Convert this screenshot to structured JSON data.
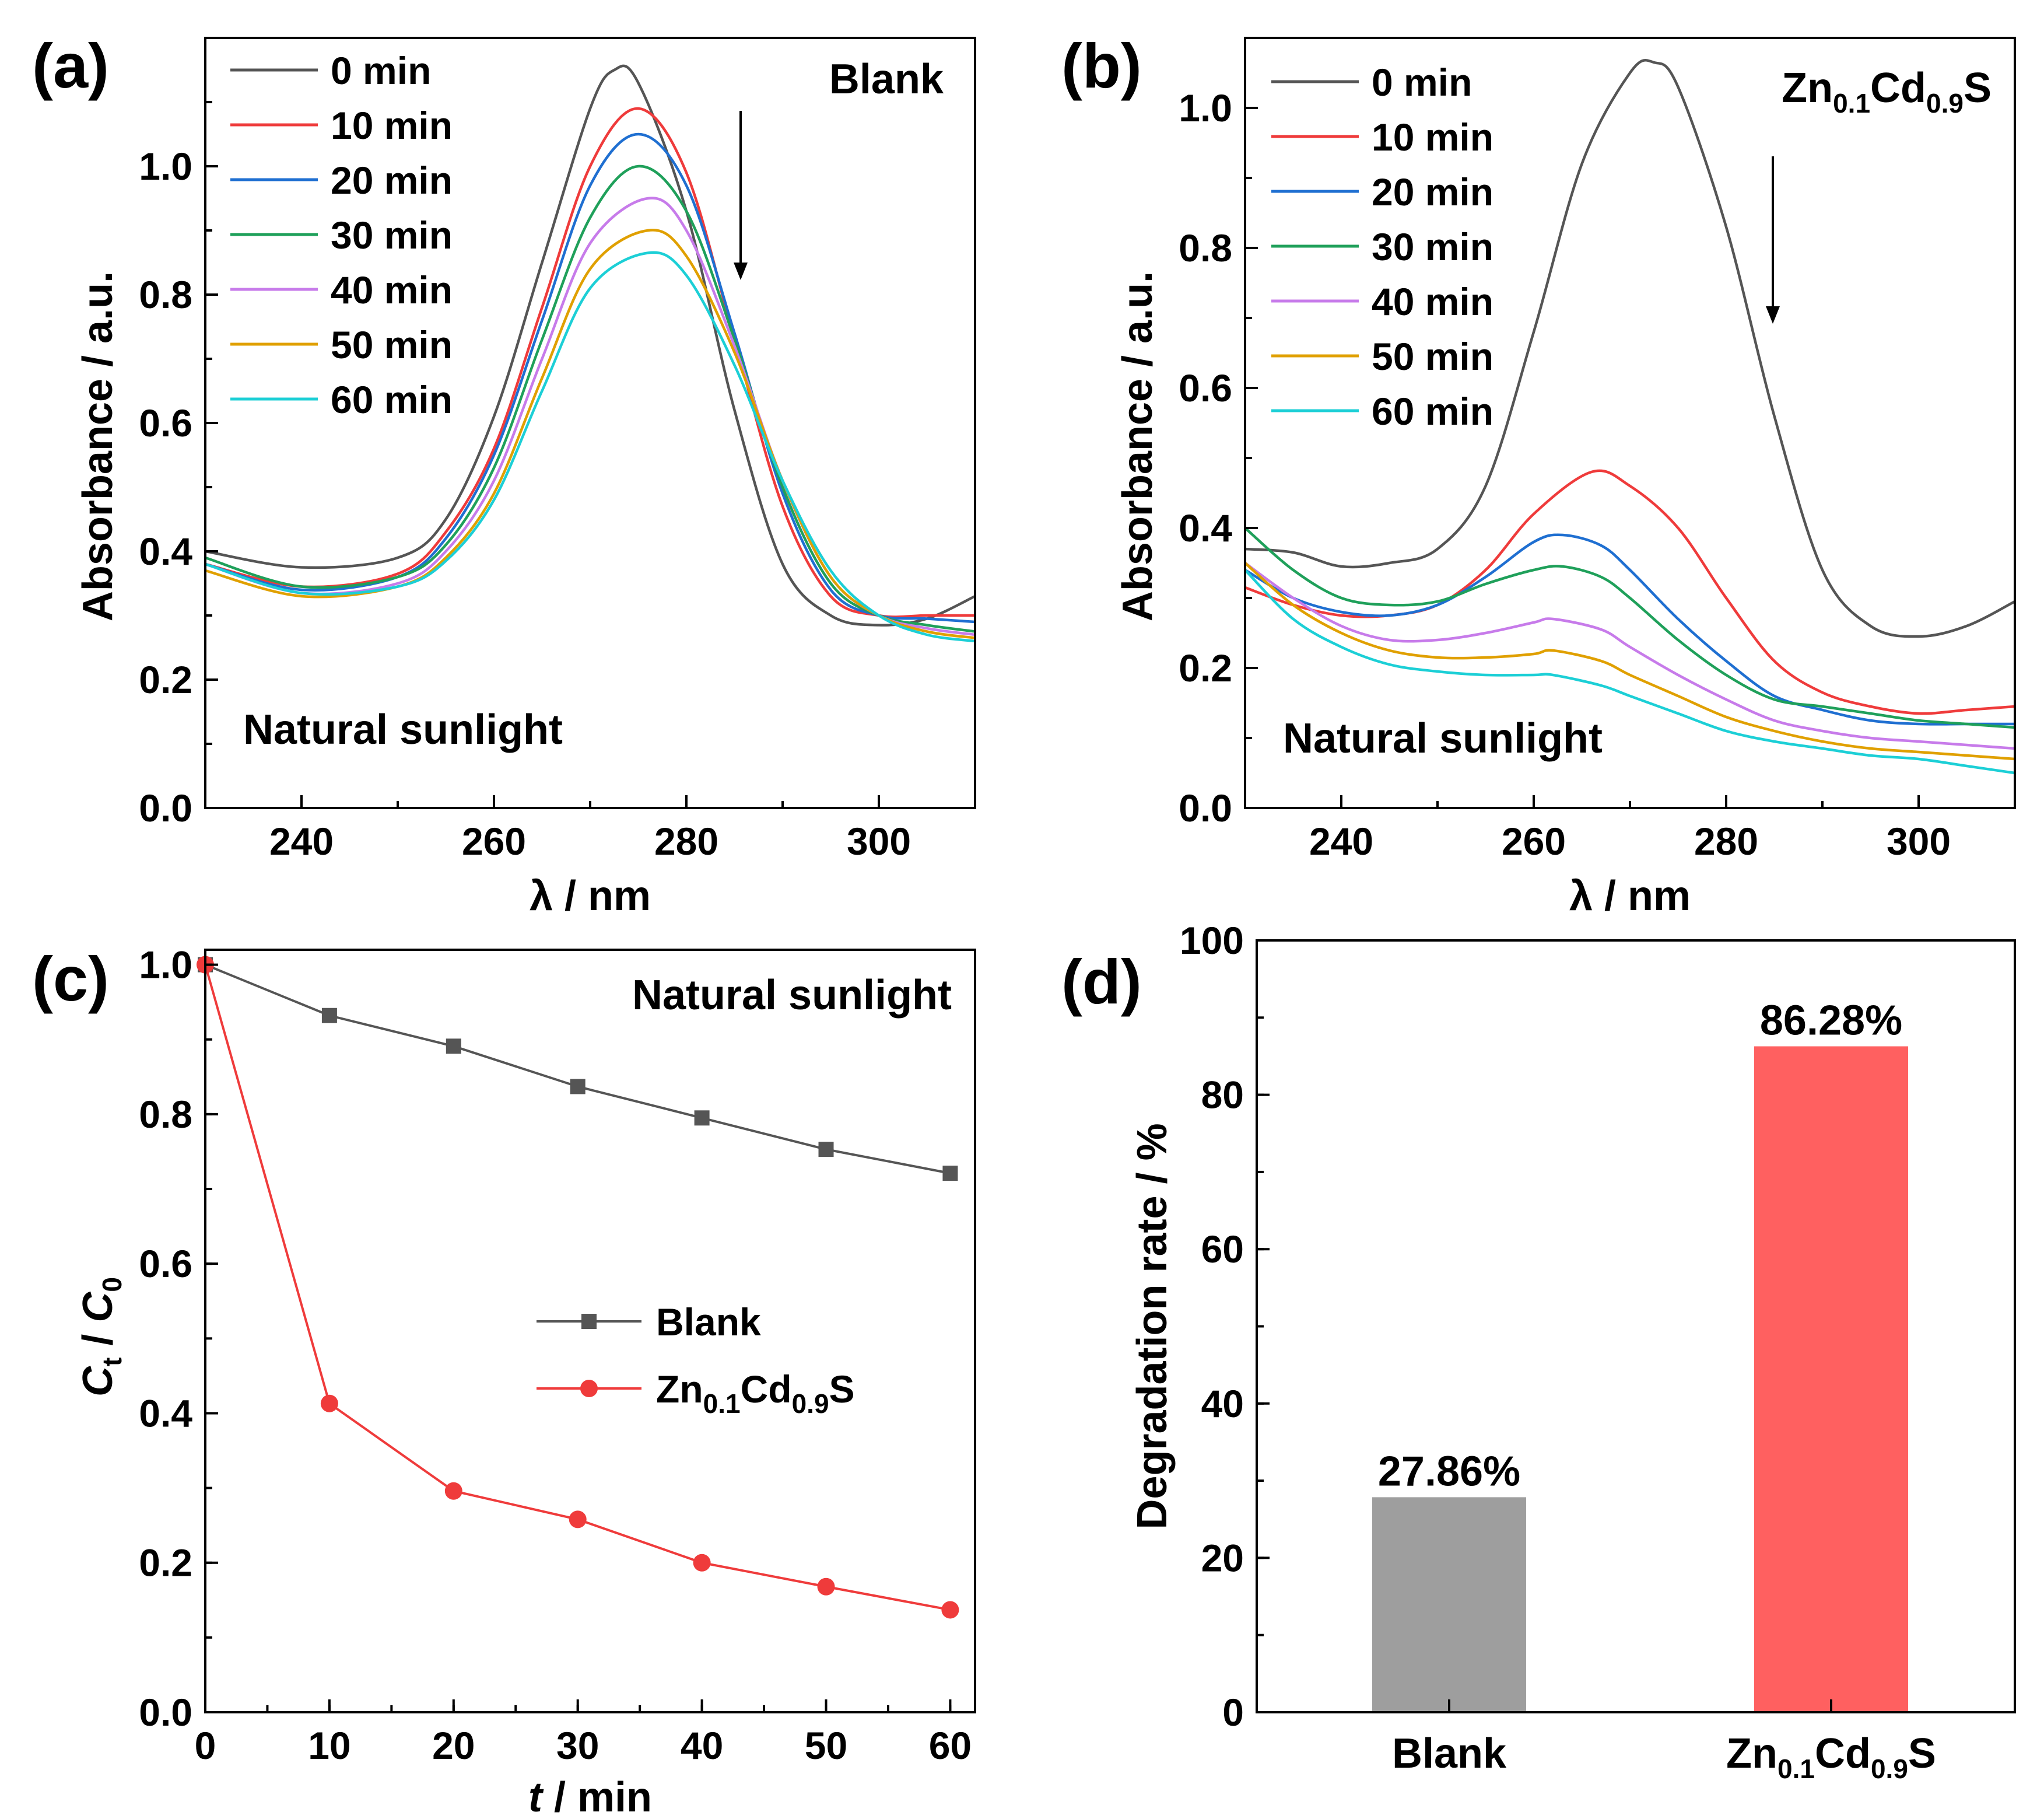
{
  "chart_data": [
    {
      "panel": "(a)",
      "type": "line",
      "title": "Blank",
      "annotation": "Natural sunlight",
      "xlabel": "λ / nm",
      "ylabel": "Absorbance / a.u.",
      "xlim": [
        230,
        310
      ],
      "ylim": [
        0.0,
        1.2
      ],
      "xticks": [
        240,
        260,
        280,
        300
      ],
      "yticks": [
        "0.0",
        "0.2",
        "0.4",
        "0.6",
        "0.8",
        "1.0"
      ],
      "series": [
        {
          "name": "0 min",
          "color": "#555555",
          "x": [
            230,
            240,
            250,
            255,
            260,
            265,
            270,
            272.5,
            275,
            280,
            285,
            290,
            295,
            300,
            305,
            310
          ],
          "y": [
            0.4,
            0.375,
            0.39,
            0.45,
            0.61,
            0.85,
            1.09,
            1.15,
            1.13,
            0.93,
            0.62,
            0.38,
            0.3,
            0.285,
            0.295,
            0.33
          ]
        },
        {
          "name": "10 min",
          "color": "#ef3b3b",
          "x": [
            230,
            240,
            250,
            255,
            260,
            265,
            270,
            275,
            280,
            285,
            290,
            295,
            300,
            305,
            310
          ],
          "y": [
            0.38,
            0.345,
            0.365,
            0.43,
            0.56,
            0.78,
            1.0,
            1.09,
            0.99,
            0.73,
            0.47,
            0.33,
            0.3,
            0.3,
            0.3
          ]
        },
        {
          "name": "20 min",
          "color": "#1f6fd1",
          "x": [
            230,
            240,
            250,
            255,
            260,
            265,
            270,
            275,
            280,
            285,
            290,
            295,
            300,
            305,
            310
          ],
          "y": [
            0.38,
            0.34,
            0.36,
            0.42,
            0.55,
            0.76,
            0.97,
            1.05,
            0.97,
            0.74,
            0.49,
            0.34,
            0.3,
            0.295,
            0.29
          ]
        },
        {
          "name": "30 min",
          "color": "#1fa05a",
          "x": [
            230,
            240,
            250,
            255,
            260,
            265,
            270,
            275,
            280,
            285,
            290,
            295,
            300,
            305,
            310
          ],
          "y": [
            0.39,
            0.345,
            0.36,
            0.41,
            0.53,
            0.73,
            0.92,
            1.0,
            0.93,
            0.73,
            0.5,
            0.35,
            0.3,
            0.285,
            0.275
          ]
        },
        {
          "name": "40 min",
          "color": "#c77bea",
          "x": [
            230,
            240,
            250,
            255,
            260,
            265,
            270,
            276,
            280,
            285,
            290,
            295,
            300,
            305,
            310
          ],
          "y": [
            0.38,
            0.335,
            0.35,
            0.4,
            0.51,
            0.7,
            0.88,
            0.95,
            0.9,
            0.72,
            0.51,
            0.36,
            0.3,
            0.28,
            0.27
          ]
        },
        {
          "name": "50 min",
          "color": "#e0a000",
          "x": [
            230,
            240,
            250,
            255,
            260,
            265,
            270,
            276,
            280,
            285,
            290,
            295,
            300,
            305,
            310
          ],
          "y": [
            0.37,
            0.33,
            0.345,
            0.39,
            0.49,
            0.67,
            0.84,
            0.9,
            0.86,
            0.71,
            0.51,
            0.36,
            0.3,
            0.275,
            0.265
          ]
        },
        {
          "name": "60 min",
          "color": "#1ccfd6",
          "x": [
            230,
            240,
            250,
            255,
            260,
            265,
            270,
            276,
            280,
            285,
            290,
            295,
            300,
            305,
            310
          ],
          "y": [
            0.38,
            0.335,
            0.345,
            0.385,
            0.48,
            0.65,
            0.81,
            0.865,
            0.83,
            0.69,
            0.51,
            0.37,
            0.3,
            0.27,
            0.26
          ]
        }
      ]
    },
    {
      "panel": "(b)",
      "type": "line",
      "title": "Zn0.1Cd0.9S",
      "annotation": "Natural sunlight",
      "xlabel": "λ / nm",
      "ylabel": "Absorbance / a.u.",
      "xlim": [
        230,
        310
      ],
      "ylim": [
        0.0,
        1.1
      ],
      "xticks": [
        240,
        260,
        280,
        300
      ],
      "yticks": [
        "0.0",
        "0.2",
        "0.4",
        "0.6",
        "0.8",
        "1.0"
      ],
      "series": [
        {
          "name": "0 min",
          "color": "#555555",
          "x": [
            230,
            235,
            240,
            245,
            250,
            255,
            260,
            265,
            270,
            272.5,
            275,
            280,
            285,
            290,
            295,
            300,
            305,
            310
          ],
          "y": [
            0.37,
            0.365,
            0.345,
            0.35,
            0.37,
            0.46,
            0.68,
            0.92,
            1.05,
            1.065,
            1.03,
            0.83,
            0.56,
            0.34,
            0.26,
            0.245,
            0.26,
            0.295
          ]
        },
        {
          "name": "10 min",
          "color": "#ef3b3b",
          "x": [
            230,
            235,
            240,
            245,
            250,
            255,
            260,
            266,
            270,
            275,
            280,
            285,
            290,
            295,
            300,
            305,
            310
          ],
          "y": [
            0.315,
            0.29,
            0.275,
            0.275,
            0.29,
            0.34,
            0.42,
            0.48,
            0.46,
            0.4,
            0.3,
            0.21,
            0.165,
            0.145,
            0.135,
            0.14,
            0.145
          ]
        },
        {
          "name": "20 min",
          "color": "#1f6fd1",
          "x": [
            230,
            235,
            240,
            245,
            250,
            255,
            260,
            263,
            267,
            270,
            275,
            280,
            285,
            290,
            295,
            300,
            305,
            310
          ],
          "y": [
            0.34,
            0.3,
            0.28,
            0.275,
            0.29,
            0.33,
            0.38,
            0.39,
            0.375,
            0.34,
            0.27,
            0.21,
            0.16,
            0.14,
            0.125,
            0.12,
            0.12,
            0.12
          ]
        },
        {
          "name": "30 min",
          "color": "#1fa05a",
          "x": [
            230,
            235,
            240,
            245,
            250,
            255,
            260,
            263,
            267,
            270,
            275,
            280,
            285,
            290,
            295,
            300,
            305,
            310
          ],
          "y": [
            0.4,
            0.34,
            0.3,
            0.29,
            0.295,
            0.32,
            0.34,
            0.345,
            0.33,
            0.3,
            0.24,
            0.19,
            0.155,
            0.145,
            0.135,
            0.125,
            0.12,
            0.115
          ]
        },
        {
          "name": "40 min",
          "color": "#c77bea",
          "x": [
            230,
            235,
            240,
            245,
            250,
            255,
            260,
            262,
            267,
            270,
            275,
            280,
            285,
            290,
            295,
            300,
            305,
            310
          ],
          "y": [
            0.35,
            0.3,
            0.26,
            0.24,
            0.24,
            0.25,
            0.265,
            0.27,
            0.255,
            0.23,
            0.19,
            0.155,
            0.125,
            0.11,
            0.1,
            0.095,
            0.09,
            0.085
          ]
        },
        {
          "name": "50 min",
          "color": "#e0a000",
          "x": [
            230,
            235,
            240,
            245,
            250,
            255,
            260,
            262,
            267,
            270,
            275,
            280,
            285,
            290,
            295,
            300,
            305,
            310
          ],
          "y": [
            0.35,
            0.29,
            0.25,
            0.225,
            0.215,
            0.215,
            0.22,
            0.225,
            0.21,
            0.19,
            0.16,
            0.13,
            0.11,
            0.095,
            0.085,
            0.08,
            0.075,
            0.07
          ]
        },
        {
          "name": "60 min",
          "color": "#1ccfd6",
          "x": [
            230,
            235,
            240,
            245,
            250,
            255,
            260,
            262,
            267,
            270,
            275,
            280,
            285,
            290,
            295,
            300,
            305,
            310
          ],
          "y": [
            0.34,
            0.27,
            0.23,
            0.205,
            0.195,
            0.19,
            0.19,
            0.19,
            0.175,
            0.16,
            0.135,
            0.11,
            0.095,
            0.085,
            0.075,
            0.07,
            0.06,
            0.05
          ]
        }
      ]
    },
    {
      "panel": "(c)",
      "type": "line",
      "annotation": "Natural sunlight",
      "xlabel": "t / min",
      "ylabel": "Ct / C0",
      "xlim": [
        0,
        62
      ],
      "ylim": [
        0.0,
        1.02
      ],
      "xticks": [
        0,
        10,
        20,
        30,
        40,
        50,
        60
      ],
      "yticks": [
        "0.0",
        "0.2",
        "0.4",
        "0.6",
        "0.8",
        "1.0"
      ],
      "series": [
        {
          "name": "Blank",
          "color": "#555555",
          "marker": "square",
          "x": [
            0,
            10,
            20,
            30,
            40,
            50,
            60
          ],
          "y": [
            1.0,
            0.932,
            0.891,
            0.837,
            0.795,
            0.753,
            0.721
          ]
        },
        {
          "name": "Zn0.1Cd0.9S",
          "color": "#ef3b3b",
          "marker": "circle",
          "x": [
            0,
            10,
            20,
            30,
            40,
            50,
            60
          ],
          "y": [
            1.0,
            0.413,
            0.296,
            0.258,
            0.2,
            0.168,
            0.137
          ]
        }
      ]
    },
    {
      "panel": "(d)",
      "type": "bar",
      "xlabel": "",
      "ylabel": "Degradation rate / %",
      "ylim": [
        0,
        100
      ],
      "yticks": [
        "0",
        "20",
        "40",
        "60",
        "80",
        "100"
      ],
      "categories": [
        "Blank",
        "Zn0.1Cd0.9S"
      ],
      "values": [
        27.86,
        86.28
      ],
      "value_labels": [
        "27.86%",
        "86.28%"
      ],
      "colors": [
        "#9e9e9e",
        "#ff6060"
      ]
    }
  ]
}
